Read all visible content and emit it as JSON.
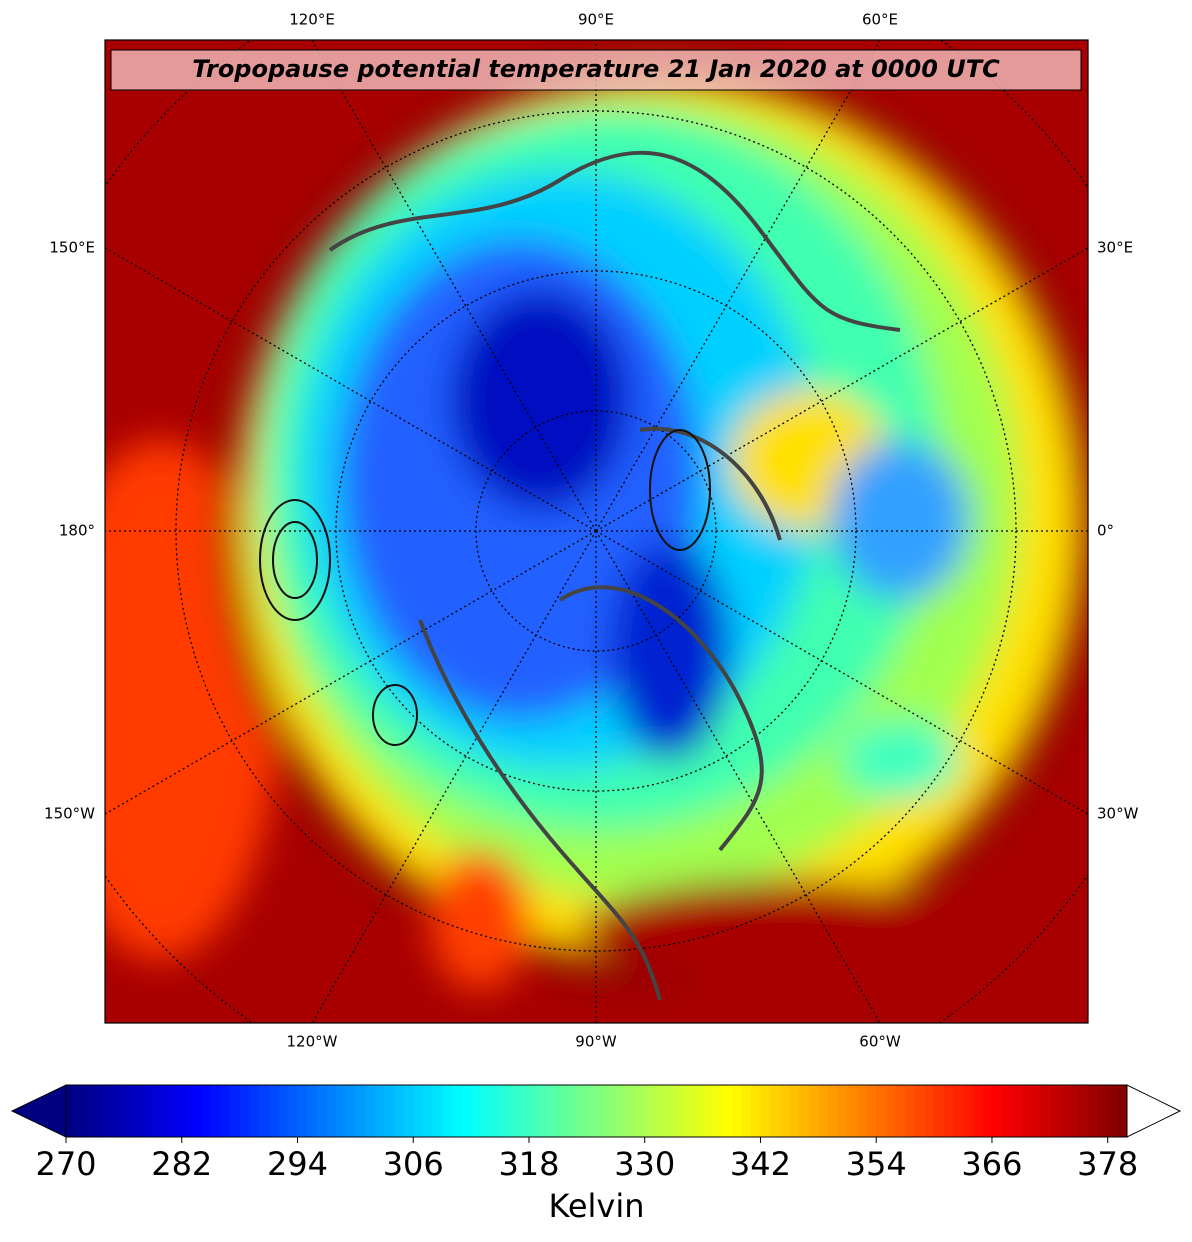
{
  "map": {
    "title": "Tropopause potential temperature 21 Jan 2020 at 0000 UTC",
    "lon_labels": {
      "top": [
        "120°E",
        "90°E",
        "60°E"
      ],
      "left": [
        "150°E",
        "180°",
        "150°W"
      ],
      "right": [
        "30°E",
        "0°",
        "30°W"
      ],
      "bottom": [
        "120°W",
        "90°W",
        "60°W"
      ]
    }
  },
  "colorbar": {
    "label": "Kelvin",
    "colormap": "jet",
    "range": [
      270,
      380
    ],
    "extend": "both",
    "ticks": [
      270,
      282,
      294,
      306,
      318,
      330,
      342,
      354,
      366,
      378
    ]
  }
}
